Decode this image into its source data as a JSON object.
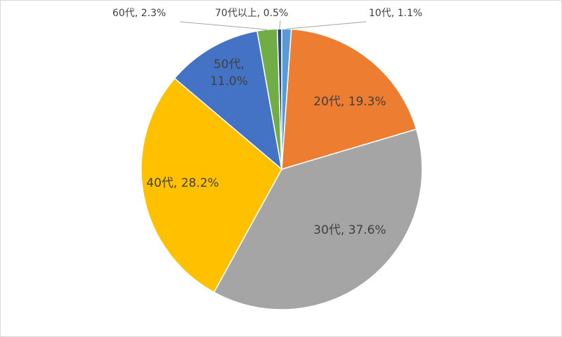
{
  "chart_data": {
    "type": "pie",
    "title": "",
    "categories": [
      "10代",
      "20代",
      "30代",
      "40代",
      "50代",
      "60代",
      "70代以上"
    ],
    "values": [
      1.1,
      19.3,
      37.6,
      28.2,
      11.0,
      2.3,
      0.5
    ],
    "unit": "%",
    "colors": [
      "#5B9BD5",
      "#ED7D31",
      "#A5A5A5",
      "#FFC000",
      "#4472C4",
      "#70AD47",
      "#264478"
    ],
    "start_angle": "12 o'clock",
    "direction": "clockwise",
    "legend": "none",
    "slice_border_color": "#ffffff",
    "labels": [
      {
        "text": "10代, 1.1%",
        "placement": "outside-leader"
      },
      {
        "text": "20代, 19.3%",
        "placement": "inside"
      },
      {
        "text": "30代, 37.6%",
        "placement": "inside"
      },
      {
        "text": "40代, 28.2%",
        "placement": "inside"
      },
      {
        "lines": [
          "50代,",
          "11.0%"
        ],
        "placement": "inside"
      },
      {
        "text": "60代, 2.3%",
        "placement": "outside-leader"
      },
      {
        "text": "70代以上, 0.5%",
        "placement": "outside-leader"
      }
    ]
  }
}
